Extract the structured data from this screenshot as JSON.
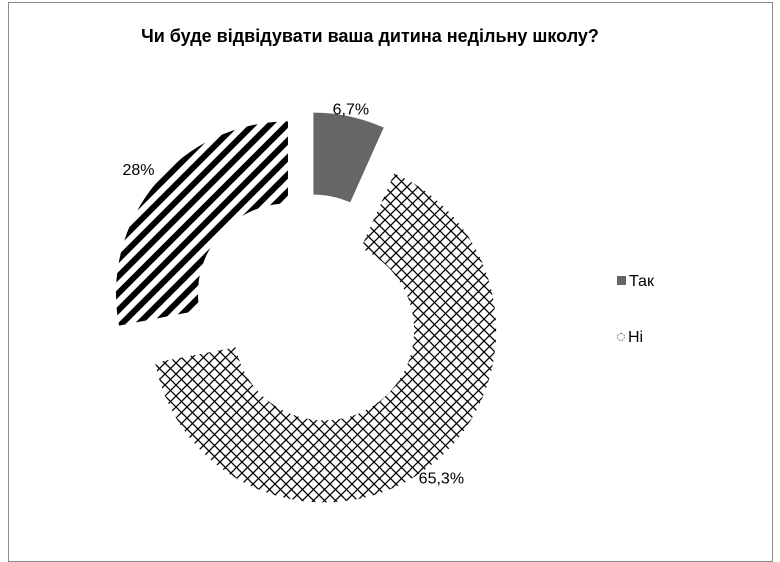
{
  "chart_data": {
    "type": "pie",
    "variant": "doughnut-exploded",
    "title": "Чи буде відвідувати ваша дитина недільну школу?",
    "categories": [
      "Так",
      "Ні",
      ""
    ],
    "values": [
      6.7,
      65.3,
      28
    ],
    "data_labels": [
      "6,7%",
      "65,3%",
      "28%"
    ],
    "legend": {
      "position": "right",
      "entries": [
        "Так",
        "Ні"
      ]
    },
    "colors": {
      "tak": "#666666",
      "pattern_ink": "#000000"
    }
  }
}
